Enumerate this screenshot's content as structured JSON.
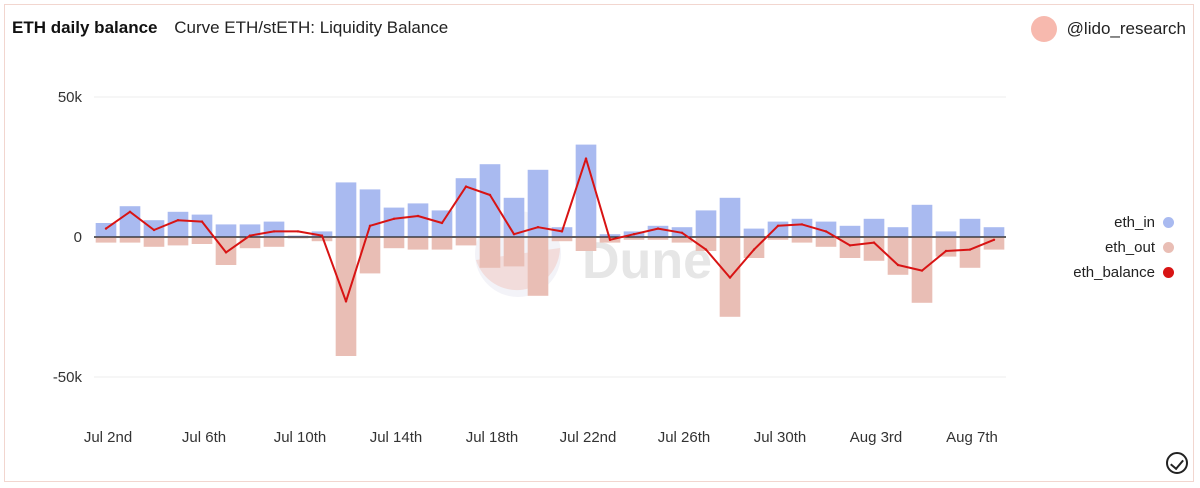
{
  "header": {
    "query_title": "ETH daily balance",
    "viz_title": "Curve ETH/stETH: Liquidity Balance"
  },
  "author": {
    "name": "@lido_research",
    "avatar_color": "#f7b9ae"
  },
  "watermark": {
    "text": "Dune"
  },
  "colors": {
    "eth_in": "#a9baf0",
    "eth_out": "#e9beb5",
    "eth_balance": "#d81414"
  },
  "chart_data": {
    "type": "bar",
    "title": "Curve ETH/stETH: Liquidity Balance",
    "xlabel": "",
    "ylabel": "",
    "ylim": [
      -60000,
      60000
    ],
    "y_ticks": [
      50000,
      0,
      -50000
    ],
    "y_tick_labels": [
      "50k",
      "0",
      "-50k"
    ],
    "x_tick_labels": [
      "Jul 2nd",
      "Jul 6th",
      "Jul 10th",
      "Jul 14th",
      "Jul 18th",
      "Jul 22nd",
      "Jul 26th",
      "Jul 30th",
      "Aug 3rd",
      "Aug 7th"
    ],
    "x_tick_index": [
      0,
      4,
      8,
      12,
      16,
      20,
      24,
      28,
      32,
      36
    ],
    "categories": [
      "Jul 2nd",
      "Jul 3rd",
      "Jul 4th",
      "Jul 5th",
      "Jul 6th",
      "Jul 7th",
      "Jul 8th",
      "Jul 9th",
      "Jul 10th",
      "Jul 11th",
      "Jul 12th",
      "Jul 13th",
      "Jul 14th",
      "Jul 15th",
      "Jul 16th",
      "Jul 17th",
      "Jul 18th",
      "Jul 19th",
      "Jul 20th",
      "Jul 21st",
      "Jul 22nd",
      "Jul 23rd",
      "Jul 24th",
      "Jul 25th",
      "Jul 26th",
      "Jul 27th",
      "Jul 28th",
      "Jul 29th",
      "Jul 30th",
      "Jul 31st",
      "Aug 1st",
      "Aug 2nd",
      "Aug 3rd",
      "Aug 4th",
      "Aug 5th",
      "Aug 6th",
      "Aug 7th",
      "Aug 8th"
    ],
    "legend_position": "right",
    "series": [
      {
        "name": "eth_in",
        "type": "bar",
        "values": [
          5000,
          11000,
          6000,
          9000,
          8000,
          4500,
          4500,
          5500,
          500,
          2000,
          19500,
          17000,
          10500,
          12000,
          9500,
          21000,
          26000,
          14000,
          24000,
          3500,
          33000,
          1000,
          2000,
          4000,
          3500,
          9500,
          14000,
          3000,
          5500,
          6500,
          5500,
          4000,
          6500,
          3500,
          11500,
          2000,
          6500,
          3500
        ]
      },
      {
        "name": "eth_out",
        "type": "bar",
        "values": [
          -2000,
          -2000,
          -3500,
          -3000,
          -2500,
          -10000,
          -4000,
          -3500,
          -500,
          -1500,
          -42500,
          -13000,
          -4000,
          -4500,
          -4500,
          -3000,
          -11000,
          -10500,
          -21000,
          -1500,
          -5000,
          -2000,
          -1000,
          -1000,
          -2000,
          -5000,
          -28500,
          -7500,
          -1000,
          -2000,
          -3500,
          -7500,
          -8500,
          -13500,
          -23500,
          -7000,
          -11000,
          -4500
        ]
      },
      {
        "name": "eth_balance",
        "type": "line",
        "values": [
          3000,
          9000,
          2500,
          6000,
          5500,
          -5500,
          500,
          2000,
          2000,
          500,
          -23000,
          4000,
          6500,
          7500,
          5000,
          18000,
          15000,
          1000,
          3500,
          2000,
          28000,
          -1000,
          1000,
          3000,
          1500,
          -4500,
          -14500,
          -4500,
          4000,
          4500,
          2000,
          -3000,
          -2000,
          -10000,
          -12000,
          -5000,
          -4500,
          -1000
        ]
      }
    ]
  }
}
